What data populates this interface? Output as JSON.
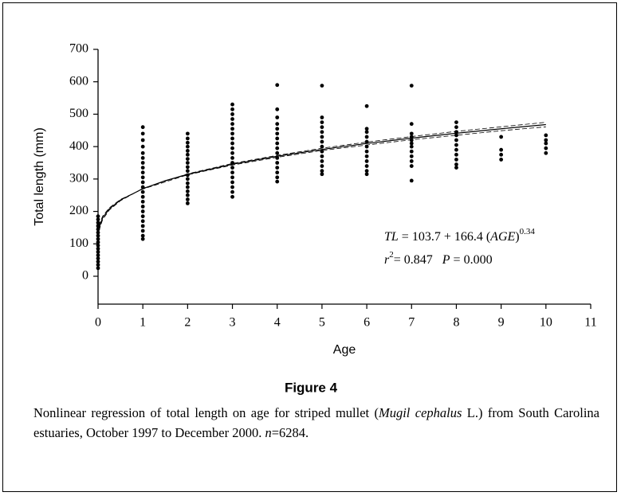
{
  "chart_data": {
    "type": "scatter",
    "xlabel": "Age",
    "ylabel": "Total length (mm)",
    "xlim": [
      0,
      11
    ],
    "xticks": [
      0,
      1,
      2,
      3,
      4,
      5,
      6,
      7,
      8,
      9,
      10,
      11
    ],
    "ylim": [
      -86,
      700
    ],
    "yticks": [
      0,
      100,
      200,
      300,
      400,
      500,
      600,
      700
    ],
    "color": "#000000",
    "series": [
      {
        "x": 0,
        "values": [
          25,
          35,
          45,
          55,
          65,
          75,
          85,
          95,
          105,
          115,
          125,
          135,
          145,
          155,
          165,
          175,
          185
        ]
      },
      {
        "x": 1,
        "values": [
          115,
          125,
          140,
          155,
          170,
          185,
          200,
          215,
          230,
          245,
          260,
          275,
          290,
          305,
          320,
          335,
          350,
          365,
          380,
          400,
          420,
          440,
          460
        ]
      },
      {
        "x": 2,
        "values": [
          225,
          237,
          250,
          262,
          275,
          287,
          300,
          312,
          325,
          337,
          350,
          362,
          375,
          387,
          400,
          412,
          425,
          440
        ]
      },
      {
        "x": 3,
        "values": [
          245,
          260,
          275,
          290,
          305,
          320,
          335,
          350,
          365,
          380,
          395,
          410,
          425,
          440,
          455,
          470,
          485,
          500,
          515,
          530
        ]
      },
      {
        "x": 4,
        "values": [
          292,
          305,
          320,
          335,
          350,
          365,
          380,
          395,
          410,
          425,
          440,
          455,
          470,
          490,
          515,
          590
        ]
      },
      {
        "x": 5,
        "values": [
          315,
          325,
          340,
          355,
          370,
          385,
          400,
          415,
          430,
          445,
          460,
          475,
          490,
          588
        ]
      },
      {
        "x": 6,
        "values": [
          315,
          325,
          340,
          355,
          370,
          385,
          400,
          415,
          430,
          445,
          455,
          525
        ]
      },
      {
        "x": 7,
        "values": [
          295,
          340,
          355,
          370,
          385,
          400,
          410,
          420,
          430,
          440,
          470,
          588
        ]
      },
      {
        "x": 8,
        "values": [
          335,
          345,
          360,
          375,
          390,
          405,
          420,
          435,
          445,
          460,
          475
        ]
      },
      {
        "x": 9,
        "values": [
          360,
          375,
          390,
          430
        ]
      },
      {
        "x": 10,
        "values": [
          380,
          395,
          410,
          420,
          435
        ]
      }
    ],
    "curves": [
      {
        "dash": false,
        "x": [
          0.02,
          0.1,
          0.25,
          0.5,
          1,
          1.5,
          2,
          3,
          4,
          5,
          6,
          7,
          8,
          9,
          10
        ],
        "values": [
          147.7,
          179.7,
          207.6,
          235.2,
          270.1,
          294.7,
          314.4,
          345.5,
          370.3,
          391.3,
          409.7,
          426.2,
          441.1,
          455.0,
          467.8
        ]
      },
      {
        "dash": true,
        "x": [
          0.02,
          0.1,
          0.25,
          0.5,
          1,
          2,
          3,
          4,
          5,
          6,
          7,
          8,
          9,
          10
        ],
        "values": [
          140,
          174,
          204,
          233,
          271,
          316,
          348,
          373,
          395,
          414,
          431,
          447,
          461,
          475
        ]
      },
      {
        "dash": true,
        "x": [
          0.02,
          0.1,
          0.25,
          0.5,
          1,
          2,
          3,
          4,
          5,
          6,
          7,
          8,
          9,
          10
        ],
        "values": [
          155,
          185,
          211,
          237,
          269,
          313,
          343,
          367,
          388,
          405,
          421,
          435,
          449,
          461
        ]
      }
    ],
    "equation": [
      "TL",
      " = 103.7 + 166.4 (",
      "AGE",
      ")",
      "0.34"
    ],
    "stats": [
      "r",
      "2",
      "= 0.847",
      "P",
      " = 0.000"
    ],
    "figure_label": "Figure 4",
    "caption": [
      "Nonlinear regression of total length on age for striped mullet (",
      "Mugil cephalus",
      " L.) from South Carolina estuaries, October 1997 to December 2000. ",
      "n",
      "=6284."
    ]
  }
}
